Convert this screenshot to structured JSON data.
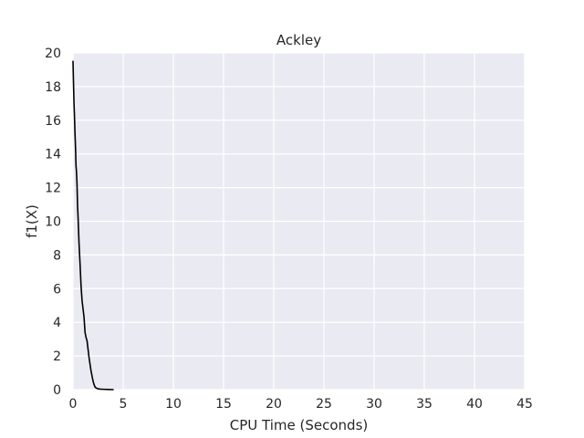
{
  "chart_data": {
    "type": "line",
    "title": "Ackley",
    "xlabel": "CPU Time (Seconds)",
    "ylabel": "f1(X)",
    "xlim": [
      0,
      45
    ],
    "ylim": [
      0,
      20
    ],
    "xticks": [
      0,
      5,
      10,
      15,
      20,
      25,
      30,
      35,
      40,
      45
    ],
    "yticks": [
      0,
      2,
      4,
      6,
      8,
      10,
      12,
      14,
      16,
      18,
      20
    ],
    "grid": true,
    "background_color": "#eaeaf2",
    "grid_color": "#ffffff",
    "series": [
      {
        "color": "#000000",
        "x": [
          0.0,
          0.05,
          0.1,
          0.15,
          0.2,
          0.25,
          0.3,
          0.35,
          0.4,
          0.45,
          0.5,
          0.6,
          0.7,
          0.8,
          0.9,
          1.0,
          1.1,
          1.2,
          1.3,
          1.4,
          1.5,
          1.6,
          1.7,
          1.8,
          1.9,
          2.0,
          2.1,
          2.2,
          2.3,
          2.4,
          2.5,
          2.7,
          3.0,
          3.5,
          4.0
        ],
        "y": [
          19.5,
          18.2,
          17.0,
          16.2,
          15.2,
          14.4,
          13.3,
          12.9,
          12.2,
          11.0,
          10.3,
          8.7,
          7.5,
          6.2,
          5.3,
          4.8,
          4.3,
          3.4,
          3.1,
          2.9,
          2.4,
          1.9,
          1.5,
          1.1,
          0.8,
          0.5,
          0.3,
          0.15,
          0.1,
          0.07,
          0.05,
          0.03,
          0.02,
          0.01,
          0.0
        ]
      }
    ]
  }
}
